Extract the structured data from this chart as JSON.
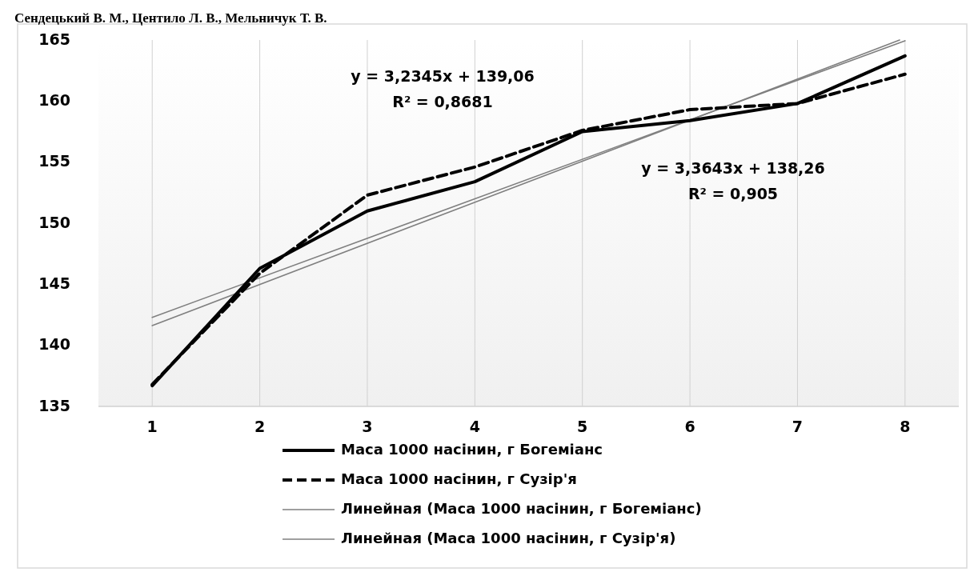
{
  "chart_data": {
    "type": "line",
    "x": [
      1,
      2,
      3,
      4,
      5,
      6,
      7,
      8
    ],
    "xlim": [
      0.5,
      8.5
    ],
    "xticks": [
      1,
      2,
      3,
      4,
      5,
      6,
      7,
      8
    ],
    "ylim": [
      135,
      165
    ],
    "yticks": [
      135,
      140,
      145,
      150,
      155,
      160,
      165
    ],
    "grid": "x",
    "legend": "bottom",
    "marker": "none",
    "series": [
      {
        "name": "Маса 1000 насінин, г Богеміанс",
        "color": "#000000",
        "line_style": "solid",
        "values": [
          136.7,
          146.3,
          151.0,
          153.4,
          157.5,
          158.4,
          159.8,
          163.7
        ]
      },
      {
        "name": "Маса 1000 насінин, г Сузір'я",
        "color": "#000000",
        "line_style": "dashed",
        "values": [
          136.8,
          145.9,
          152.3,
          154.6,
          157.6,
          159.3,
          159.8,
          162.2
        ]
      },
      {
        "name": "Линейная (Маса 1000 насінин, г Богеміанс)",
        "color": "#7f7f7f",
        "line_style": "solid",
        "x": [
          1,
          7.95
        ],
        "values": [
          141.62,
          165.0
        ]
      },
      {
        "name": "Линейная (Маса 1000 насінин, г Сузір'я)",
        "color": "#7f7f7f",
        "line_style": "solid",
        "x": [
          1,
          8
        ],
        "values": [
          142.29,
          164.94
        ]
      }
    ],
    "annotations": [
      "Сендецький В. М., Центило Л. В., Мельничук Т. В.",
      "y = 3,2345x + 139,06",
      "R² = 0,8681",
      "y = 3,3643x + 138,26",
      "R² = 0,905"
    ]
  }
}
